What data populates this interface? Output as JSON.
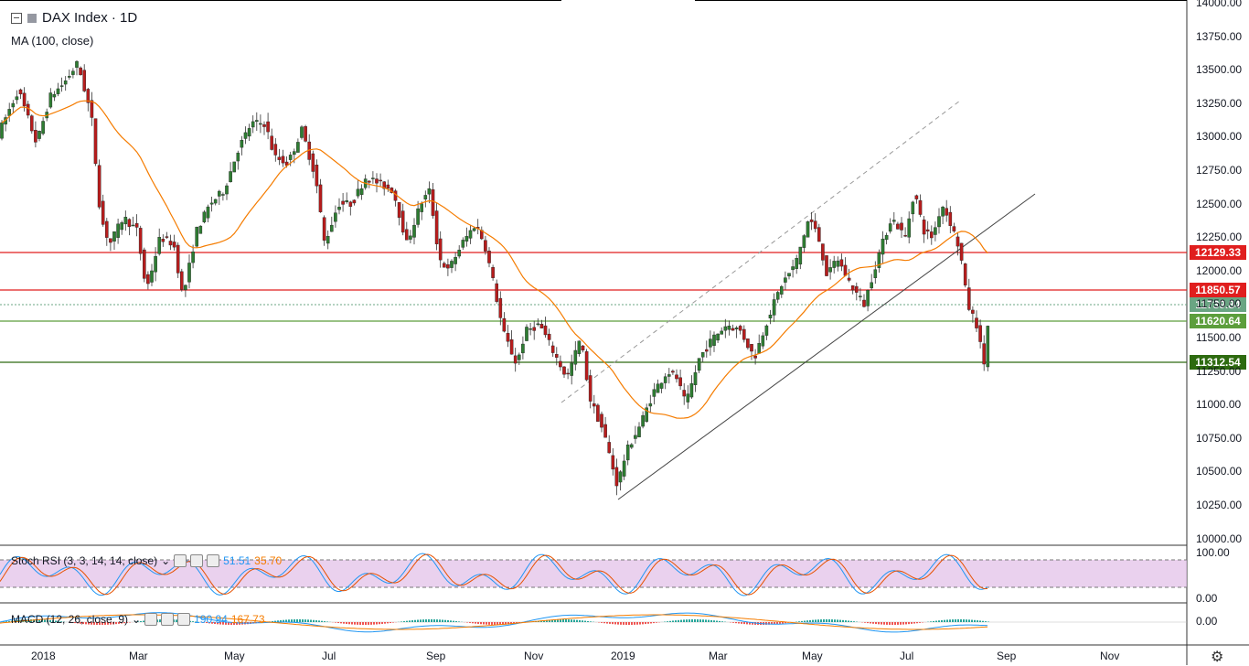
{
  "header": {
    "title": "DAX Index · 1D",
    "ma_label": "MA (100, close)"
  },
  "stoch": {
    "label": "Stoch RSI (3, 3, 14, 14, close)",
    "k": "51.51",
    "d": "35.70"
  },
  "macd": {
    "label": "MACD (12, 26, close, 9)",
    "v1": "190.94",
    "v2": "167.73"
  },
  "price_axis": [
    "14000.00",
    "13750.00",
    "13500.00",
    "13250.00",
    "13000.00",
    "12750.00",
    "12500.00",
    "12250.00",
    "12000.00",
    "11750.00",
    "11500.00",
    "11250.00",
    "11000.00",
    "10750.00",
    "10500.00",
    "10250.00",
    "10000.00"
  ],
  "stoch_axis": [
    "100.00",
    "0.00"
  ],
  "macd_axis": [
    "0.00"
  ],
  "time_axis": [
    "2018",
    "Mar",
    "May",
    "Jul",
    "Sep",
    "Nov",
    "2019",
    "Mar",
    "May",
    "Jul",
    "Sep",
    "Nov"
  ],
  "levels": [
    {
      "value": "12129.33",
      "color": "#e01e1e"
    },
    {
      "value": "11850.57",
      "color": "#e01e1e"
    },
    {
      "value": "11739.84",
      "color": "#6aa583"
    },
    {
      "value": "11620.64",
      "color": "#5c9e3c"
    },
    {
      "value": "11312.54",
      "color": "#2e6b10"
    }
  ],
  "colors": {
    "up": "#2e7d32",
    "down": "#b71c1c",
    "ma": "#f57c00",
    "stoch_k": "#2196f3",
    "stoch_d": "#e65100",
    "stoch_band": "#e1bee7"
  },
  "chart_data": {
    "type": "candlestick",
    "ylim": [
      10000,
      14000
    ],
    "ma_period": 100,
    "path": [
      [
        0,
        13050
      ],
      [
        10,
        13200
      ],
      [
        20,
        13350
      ],
      [
        30,
        13150
      ],
      [
        40,
        12950
      ],
      [
        55,
        13300
      ],
      [
        70,
        13400
      ],
      [
        85,
        13550
      ],
      [
        100,
        13150
      ],
      [
        110,
        12400
      ],
      [
        120,
        12200
      ],
      [
        135,
        12400
      ],
      [
        150,
        12300
      ],
      [
        160,
        11850
      ],
      [
        175,
        12250
      ],
      [
        190,
        12200
      ],
      [
        200,
        11800
      ],
      [
        215,
        12300
      ],
      [
        230,
        12500
      ],
      [
        245,
        12600
      ],
      [
        260,
        12900
      ],
      [
        275,
        13100
      ],
      [
        290,
        13100
      ],
      [
        300,
        12850
      ],
      [
        315,
        12800
      ],
      [
        330,
        13050
      ],
      [
        345,
        12700
      ],
      [
        355,
        12200
      ],
      [
        370,
        12500
      ],
      [
        385,
        12500
      ],
      [
        400,
        12700
      ],
      [
        415,
        12650
      ],
      [
        430,
        12600
      ],
      [
        445,
        12200
      ],
      [
        460,
        12500
      ],
      [
        470,
        12600
      ],
      [
        480,
        12100
      ],
      [
        490,
        12000
      ],
      [
        505,
        12200
      ],
      [
        520,
        12350
      ],
      [
        530,
        12200
      ],
      [
        540,
        11900
      ],
      [
        550,
        11550
      ],
      [
        565,
        11300
      ],
      [
        575,
        11550
      ],
      [
        590,
        11600
      ],
      [
        605,
        11400
      ],
      [
        620,
        11200
      ],
      [
        635,
        11500
      ],
      [
        645,
        11050
      ],
      [
        660,
        10800
      ],
      [
        675,
        10400
      ],
      [
        685,
        10650
      ],
      [
        700,
        10850
      ],
      [
        715,
        11100
      ],
      [
        730,
        11250
      ],
      [
        740,
        11200
      ],
      [
        750,
        11000
      ],
      [
        765,
        11350
      ],
      [
        780,
        11500
      ],
      [
        795,
        11600
      ],
      [
        810,
        11550
      ],
      [
        825,
        11350
      ],
      [
        840,
        11650
      ],
      [
        855,
        11900
      ],
      [
        870,
        12050
      ],
      [
        885,
        12400
      ],
      [
        895,
        12250
      ],
      [
        905,
        11950
      ],
      [
        915,
        12100
      ],
      [
        930,
        11900
      ],
      [
        945,
        11750
      ],
      [
        960,
        12100
      ],
      [
        975,
        12400
      ],
      [
        990,
        12250
      ],
      [
        1000,
        12600
      ],
      [
        1010,
        12300
      ],
      [
        1020,
        12250
      ],
      [
        1030,
        12500
      ],
      [
        1040,
        12350
      ],
      [
        1050,
        12150
      ],
      [
        1058,
        11750
      ],
      [
        1068,
        11600
      ],
      [
        1076,
        11300
      ],
      [
        1082,
        11700
      ]
    ]
  }
}
